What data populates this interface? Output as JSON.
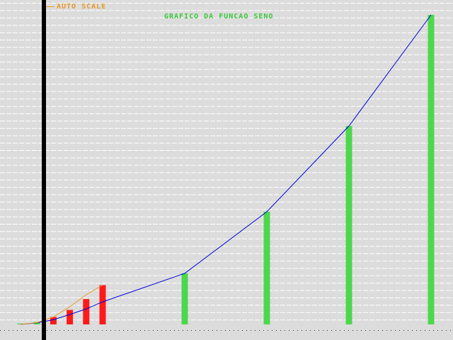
{
  "window": {
    "background": "#dcdcdc",
    "gridline_color": "#ffffff"
  },
  "autoscale": {
    "label": "AUTO SCALE",
    "color": "#e69a28"
  },
  "chart_data": {
    "type": "bar",
    "title": "GRAFICO DA FUNCAO SENO",
    "title_color": "#3cc83c",
    "xlabel": "",
    "ylabel": "",
    "grid": true,
    "legend": "none",
    "x": [
      1,
      2,
      3,
      4,
      5,
      10,
      15,
      20,
      25
    ],
    "ylim": [
      0,
      100
    ],
    "series": [
      {
        "kind": "bar",
        "color": "#ff1a1a",
        "x": [
          2,
          3,
          4,
          5
        ],
        "values": [
          2.4,
          4.7,
          8.2,
          12.7
        ]
      },
      {
        "kind": "bar",
        "color": "#4cd84c",
        "x": [
          0,
          1,
          10,
          15,
          20,
          25
        ],
        "values": [
          0.3,
          0.8,
          16.5,
          36.4,
          64.1,
          100
        ]
      },
      {
        "kind": "line",
        "color": "#0000e0",
        "x": [
          0,
          1,
          2,
          3,
          4,
          5,
          10,
          15,
          20,
          25
        ],
        "values": [
          0.0,
          0.5,
          1.5,
          3.2,
          5.0,
          7.3,
          16.5,
          36.4,
          64.1,
          100
        ]
      },
      {
        "kind": "line",
        "color": "#e69a28",
        "x": [
          0,
          1,
          2,
          3,
          4,
          5
        ],
        "values": [
          0.0,
          0.6,
          2.4,
          5.7,
          9.6,
          12.7
        ]
      }
    ]
  }
}
